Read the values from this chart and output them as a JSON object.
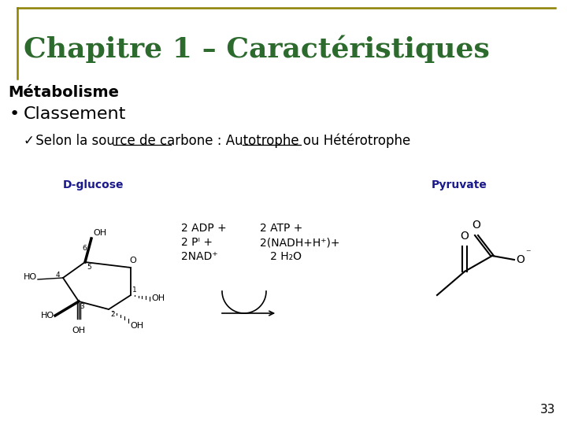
{
  "title": "Chapitre 1 – Caractéristiques",
  "title_color": "#2d6a2d",
  "title_fontsize": 26,
  "border_color": "#8B8000",
  "section_title": "Métabolisme",
  "bullet_text": "Classement",
  "check_line": "✓  Selon la source de carbone : Autotrophe ou Hétérotrophe",
  "label_left": "D-glucose",
  "label_right": "Pyruvate",
  "label_color": "#1a1a8c",
  "page_number": "33",
  "background_color": "#ffffff",
  "underline1_text": "de carbone :",
  "underline2_text": "Hétérotrophe",
  "prefix1": "  Selon la source ",
  "prefix2": "  Selon la source de carbone : Autotrophe ou ",
  "check_fontsize": 12,
  "bullet_fontsize": 16,
  "section_fontsize": 14
}
